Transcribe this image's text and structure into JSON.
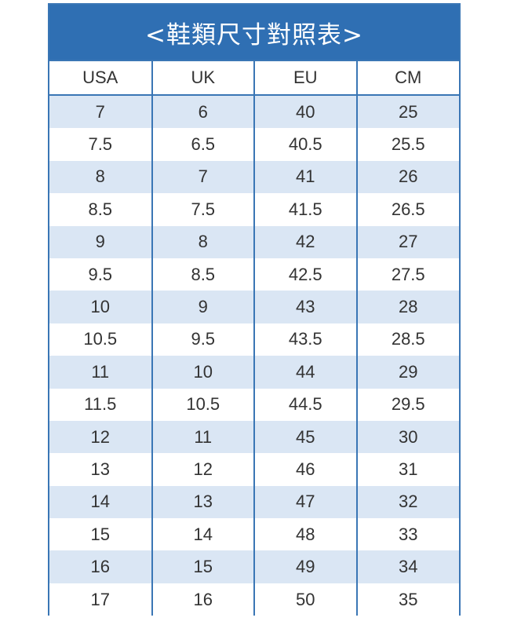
{
  "title": "<鞋類尺寸對照表>",
  "columns": [
    "USA",
    "UK",
    "EU",
    "CM"
  ],
  "rows": [
    [
      "7",
      "6",
      "40",
      "25"
    ],
    [
      "7.5",
      "6.5",
      "40.5",
      "25.5"
    ],
    [
      "8",
      "7",
      "41",
      "26"
    ],
    [
      "8.5",
      "7.5",
      "41.5",
      "26.5"
    ],
    [
      "9",
      "8",
      "42",
      "27"
    ],
    [
      "9.5",
      "8.5",
      "42.5",
      "27.5"
    ],
    [
      "10",
      "9",
      "43",
      "28"
    ],
    [
      "10.5",
      "9.5",
      "43.5",
      "28.5"
    ],
    [
      "11",
      "10",
      "44",
      "29"
    ],
    [
      "11.5",
      "10.5",
      "44.5",
      "29.5"
    ],
    [
      "12",
      "11",
      "45",
      "30"
    ],
    [
      "13",
      "12",
      "46",
      "31"
    ],
    [
      "14",
      "13",
      "47",
      "32"
    ],
    [
      "15",
      "14",
      "48",
      "33"
    ],
    [
      "16",
      "15",
      "49",
      "34"
    ],
    [
      "17",
      "16",
      "50",
      "35"
    ]
  ],
  "colors": {
    "header_bg": "#2f6fb3",
    "border": "#3a76b5",
    "stripe": "#dae6f4",
    "text": "#333333"
  }
}
